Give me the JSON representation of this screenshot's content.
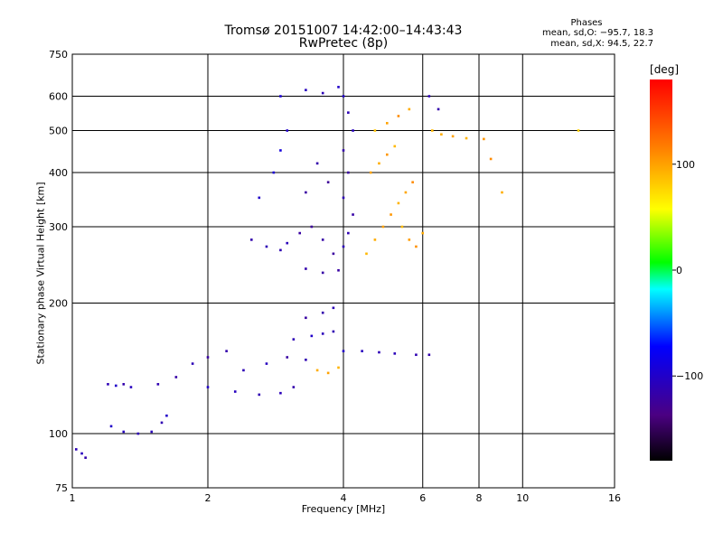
{
  "chart_data": {
    "type": "scatter",
    "title": "Tromsø 20151007 14:42:00–14:43:43",
    "subtitle": "RwPretec (8p)",
    "xlabel": "Frequency [MHz]",
    "ylabel": "Stationary phase Virtual Height [km]",
    "x_scale": "log",
    "y_scale": "log",
    "xlim": [
      1,
      16
    ],
    "ylim": [
      75,
      750
    ],
    "x_ticks": [
      1,
      2,
      4,
      6,
      8,
      10,
      16
    ],
    "x_tick_labels": [
      "1",
      "2",
      "4",
      "6",
      "8",
      "10",
      "16"
    ],
    "y_ticks": [
      75,
      100,
      200,
      300,
      400,
      500,
      600,
      750
    ],
    "y_tick_labels": [
      "75",
      "100",
      "200",
      "300",
      "400",
      "500",
      "600",
      "750"
    ],
    "grid": true,
    "colorbar": {
      "label": "deg",
      "range": [
        -180,
        180
      ],
      "ticks": [
        -100,
        0,
        100
      ],
      "tick_labels": [
        "−100",
        "0",
        "100"
      ]
    },
    "annotation": {
      "title": "Phases",
      "line1": "mean, sd,O: −95.7, 18.3",
      "line2": "mean, sd,X:  94.5, 22.7"
    },
    "series": [
      {
        "mode": "O",
        "points": [
          [
            1.02,
            92,
            -110
          ],
          [
            1.05,
            90,
            -105
          ],
          [
            1.07,
            88,
            -115
          ],
          [
            1.2,
            130,
            -110
          ],
          [
            1.25,
            129,
            -100
          ],
          [
            1.3,
            130,
            -115
          ],
          [
            1.35,
            128,
            -105
          ],
          [
            1.22,
            104,
            -100
          ],
          [
            1.3,
            101,
            -105
          ],
          [
            1.4,
            100,
            -110
          ],
          [
            1.5,
            101,
            -108
          ],
          [
            1.58,
            106,
            -112
          ],
          [
            1.62,
            110,
            -100
          ],
          [
            1.55,
            130,
            -112
          ],
          [
            1.7,
            135,
            -118
          ],
          [
            1.85,
            145,
            -110
          ],
          [
            2.0,
            150,
            -120
          ],
          [
            2.2,
            155,
            -115
          ],
          [
            2.0,
            128,
            -100
          ],
          [
            2.3,
            125,
            -105
          ],
          [
            2.6,
            123,
            -112
          ],
          [
            2.9,
            124,
            -108
          ],
          [
            3.1,
            128,
            -115
          ],
          [
            2.4,
            140,
            -110
          ],
          [
            2.7,
            145,
            -105
          ],
          [
            3.0,
            150,
            -120
          ],
          [
            3.3,
            148,
            -112
          ],
          [
            3.1,
            165,
            -110
          ],
          [
            3.4,
            168,
            -100
          ],
          [
            3.6,
            170,
            -108
          ],
          [
            3.8,
            172,
            -112
          ],
          [
            3.3,
            185,
            -120
          ],
          [
            3.6,
            190,
            -115
          ],
          [
            3.8,
            195,
            -110
          ],
          [
            4.0,
            155,
            -100
          ],
          [
            4.4,
            155,
            -105
          ],
          [
            4.8,
            154,
            -110
          ],
          [
            5.2,
            153,
            -108
          ],
          [
            5.8,
            152,
            -112
          ],
          [
            6.2,
            152,
            -115
          ],
          [
            2.5,
            280,
            -115
          ],
          [
            2.7,
            270,
            -110
          ],
          [
            2.9,
            265,
            -112
          ],
          [
            3.0,
            275,
            -108
          ],
          [
            3.2,
            290,
            -120
          ],
          [
            3.4,
            300,
            -125
          ],
          [
            3.6,
            280,
            -118
          ],
          [
            3.8,
            260,
            -122
          ],
          [
            3.3,
            240,
            -115
          ],
          [
            3.6,
            235,
            -118
          ],
          [
            3.9,
            238,
            -120
          ],
          [
            2.6,
            350,
            -100
          ],
          [
            2.8,
            400,
            -95
          ],
          [
            2.9,
            450,
            -90
          ],
          [
            3.0,
            500,
            -100
          ],
          [
            3.3,
            360,
            -120
          ],
          [
            3.5,
            420,
            -115
          ],
          [
            3.7,
            380,
            -125
          ],
          [
            4.0,
            600,
            -100
          ],
          [
            4.1,
            550,
            -110
          ],
          [
            4.2,
            500,
            -105
          ],
          [
            4.0,
            450,
            -115
          ],
          [
            4.1,
            400,
            -120
          ],
          [
            4.0,
            350,
            -110
          ],
          [
            4.2,
            320,
            -118
          ],
          [
            4.1,
            290,
            -112
          ],
          [
            4.0,
            270,
            -108
          ],
          [
            2.9,
            600,
            -95
          ],
          [
            3.3,
            620,
            -105
          ],
          [
            3.6,
            610,
            -110
          ],
          [
            3.9,
            630,
            -100
          ],
          [
            6.2,
            600,
            -110
          ],
          [
            6.5,
            560,
            -115
          ]
        ]
      },
      {
        "mode": "X",
        "points": [
          [
            3.5,
            140,
            95
          ],
          [
            3.7,
            138,
            100
          ],
          [
            3.9,
            142,
            92
          ],
          [
            4.5,
            260,
            90
          ],
          [
            4.7,
            280,
            95
          ],
          [
            4.9,
            300,
            100
          ],
          [
            5.1,
            320,
            105
          ],
          [
            5.3,
            340,
            92
          ],
          [
            5.5,
            360,
            98
          ],
          [
            5.7,
            380,
            110
          ],
          [
            4.6,
            400,
            100
          ],
          [
            4.8,
            420,
            95
          ],
          [
            5.0,
            440,
            105
          ],
          [
            5.2,
            460,
            90
          ],
          [
            4.7,
            500,
            85
          ],
          [
            5.0,
            520,
            100
          ],
          [
            5.3,
            540,
            110
          ],
          [
            5.6,
            560,
            95
          ],
          [
            5.4,
            300,
            88
          ],
          [
            5.6,
            280,
            102
          ],
          [
            5.8,
            270,
            108
          ],
          [
            6.0,
            290,
            96
          ],
          [
            6.3,
            500,
            90
          ],
          [
            6.6,
            490,
            95
          ],
          [
            7.0,
            485,
            100
          ],
          [
            7.5,
            480,
            92
          ],
          [
            8.2,
            478,
            105
          ],
          [
            8.5,
            430,
            110
          ],
          [
            9.0,
            360,
            95
          ],
          [
            13.3,
            500,
            80
          ]
        ]
      }
    ]
  }
}
